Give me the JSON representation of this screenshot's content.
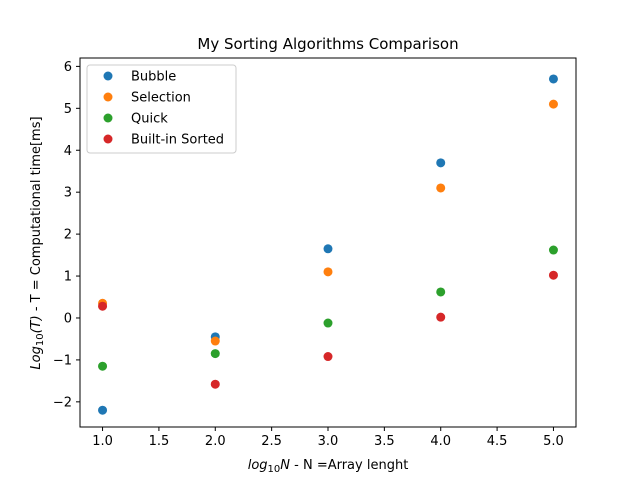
{
  "chart_data": {
    "type": "scatter",
    "title": "My Sorting Algorithms Comparison",
    "xlabel": {
      "math_base": "log",
      "math_sub": "10",
      "math_var": "N",
      "rest": " -  N =Array lenght"
    },
    "ylabel": {
      "math_base": "Log",
      "math_sub": "10",
      "math_arg": "(T)",
      "rest": " - T = Computational time[ms]"
    },
    "xlim": [
      0.8,
      5.2
    ],
    "ylim": [
      -2.6,
      6.2
    ],
    "x_ticks": [
      1.0,
      1.5,
      2.0,
      2.5,
      3.0,
      3.5,
      4.0,
      4.5,
      5.0
    ],
    "x_tick_labels": [
      "1.0",
      "1.5",
      "2.0",
      "2.5",
      "3.0",
      "3.5",
      "4.0",
      "4.5",
      "5.0"
    ],
    "y_ticks": [
      -2,
      -1,
      0,
      1,
      2,
      3,
      4,
      5,
      6
    ],
    "y_tick_labels": [
      "−2",
      "−1",
      "0",
      "1",
      "2",
      "3",
      "4",
      "5",
      "6"
    ],
    "grid": false,
    "legend_position": "top-left",
    "series": [
      {
        "name": "Bubble",
        "color": "#1f77b4",
        "x": [
          1,
          2,
          3,
          4,
          5
        ],
        "y": [
          -2.2,
          -0.45,
          1.65,
          3.7,
          5.7
        ]
      },
      {
        "name": "Selection",
        "color": "#ff7f0e",
        "x": [
          1,
          2,
          3,
          4,
          5
        ],
        "y": [
          0.35,
          -0.55,
          1.1,
          3.1,
          5.1
        ]
      },
      {
        "name": "Quick",
        "color": "#2ca02c",
        "x": [
          1,
          2,
          3,
          4,
          5
        ],
        "y": [
          -1.15,
          -0.85,
          -0.12,
          0.62,
          1.62
        ]
      },
      {
        "name": "Built-in Sorted",
        "color": "#d62728",
        "x": [
          1,
          2,
          3,
          4,
          5
        ],
        "y": [
          0.28,
          -1.58,
          -0.92,
          0.02,
          1.02
        ]
      }
    ]
  }
}
